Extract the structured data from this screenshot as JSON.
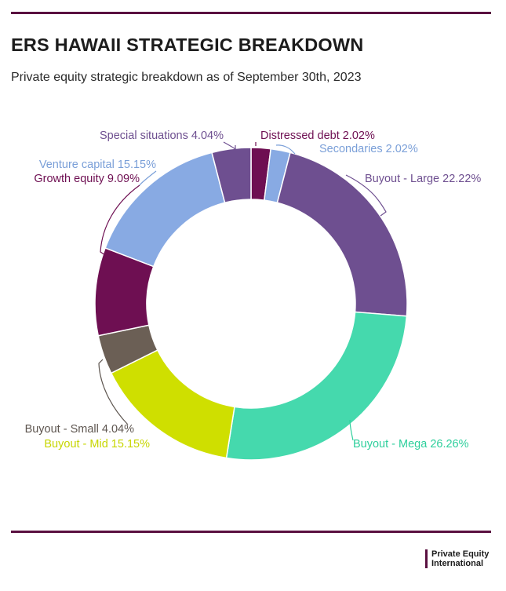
{
  "header": {
    "title": "ERS HAWAII STRATEGIC BREAKDOWN",
    "subtitle": "Private equity strategic breakdown as of September 30th, 2023"
  },
  "footer": {
    "logo_line1": "Private Equity",
    "logo_line2": "International"
  },
  "chart_data": {
    "type": "pie",
    "donut": true,
    "start_angle_deg": 0,
    "direction": "clockwise",
    "slices": [
      {
        "label": "Distressed debt 2.02%",
        "value": 2.02,
        "color": "#6e0f52",
        "label_color": "#6e0f52",
        "label_side": "right"
      },
      {
        "label": "Secondaries 2.02%",
        "value": 2.02,
        "color": "#88aae3",
        "label_color": "#7a9fd8",
        "label_side": "right"
      },
      {
        "label": "Buyout - Large 22.22%",
        "value": 22.22,
        "color": "#6e4f90",
        "label_color": "#6e4f90",
        "label_side": "right"
      },
      {
        "label": "Buyout - Mega 26.26%",
        "value": 26.26,
        "color": "#45d9ad",
        "label_color": "#2ecf9c",
        "label_side": "right"
      },
      {
        "label": "Buyout - Mid 15.15%",
        "value": 15.15,
        "color": "#cfdf00",
        "label_color": "#c7d600",
        "label_side": "left"
      },
      {
        "label": "Buyout - Small 4.04%",
        "value": 4.04,
        "color": "#6b5f55",
        "label_color": "#5e5650",
        "label_side": "left"
      },
      {
        "label": "Growth equity 9.09%",
        "value": 9.09,
        "color": "#6e0f52",
        "label_color": "#6e0f52",
        "label_side": "left"
      },
      {
        "label": "Venture capital 15.15%",
        "value": 15.15,
        "color": "#88aae3",
        "label_color": "#7a9fd8",
        "label_side": "left"
      },
      {
        "label": "Special situations 4.04%",
        "value": 4.04,
        "color": "#6e4f90",
        "label_color": "#6e4f90",
        "label_side": "left"
      }
    ]
  }
}
